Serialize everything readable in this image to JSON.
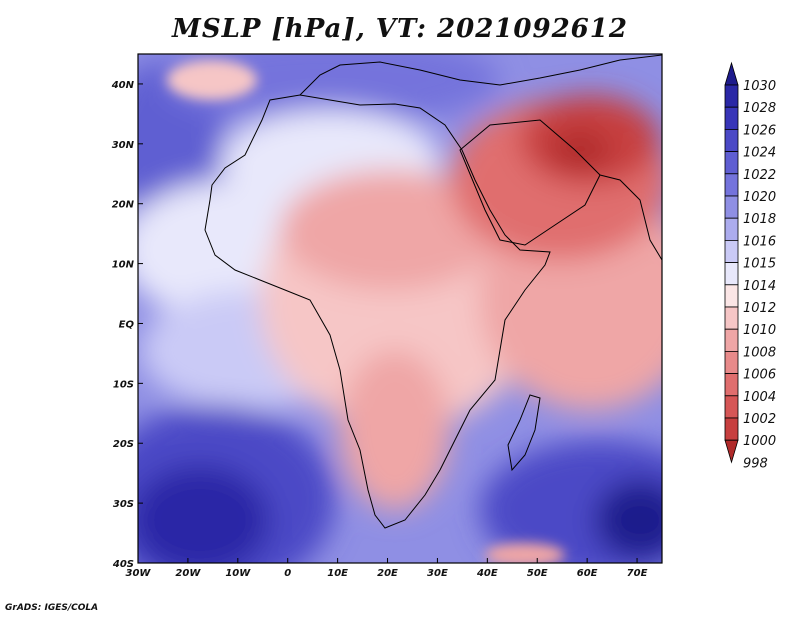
{
  "title": "MSLP [hPa], VT: 2021092612",
  "credit": "GrADS: IGES/COLA",
  "map": {
    "lon_range": [
      -30,
      75
    ],
    "lat_range": [
      -40,
      45
    ],
    "lon_ticks": [
      {
        "lon": -30,
        "label": "30W"
      },
      {
        "lon": -20,
        "label": "20W"
      },
      {
        "lon": -10,
        "label": "10W"
      },
      {
        "lon": 0,
        "label": "0"
      },
      {
        "lon": 10,
        "label": "10E"
      },
      {
        "lon": 20,
        "label": "20E"
      },
      {
        "lon": 30,
        "label": "30E"
      },
      {
        "lon": 40,
        "label": "40E"
      },
      {
        "lon": 50,
        "label": "50E"
      },
      {
        "lon": 60,
        "label": "60E"
      },
      {
        "lon": 70,
        "label": "70E"
      }
    ],
    "lat_ticks": [
      {
        "lat": 40,
        "label": "40N"
      },
      {
        "lat": 30,
        "label": "30N"
      },
      {
        "lat": 20,
        "label": "20N"
      },
      {
        "lat": 10,
        "label": "10N"
      },
      {
        "lat": 0,
        "label": "EQ"
      },
      {
        "lat": -10,
        "label": "10S"
      },
      {
        "lat": -20,
        "label": "20S"
      },
      {
        "lat": -30,
        "label": "30S"
      },
      {
        "lat": -40,
        "label": "40S"
      }
    ]
  },
  "colorbar": {
    "levels": [
      {
        "label": "1030",
        "color": "#1e1b8c"
      },
      {
        "label": "1028",
        "color": "#2a27a6"
      },
      {
        "label": "1026",
        "color": "#3835b8"
      },
      {
        "label": "1024",
        "color": "#4b49c6"
      },
      {
        "label": "1022",
        "color": "#5f5ed2"
      },
      {
        "label": "1020",
        "color": "#7473dc"
      },
      {
        "label": "1018",
        "color": "#8f8fe4"
      },
      {
        "label": "1016",
        "color": "#acacee"
      },
      {
        "label": "1015",
        "color": "#cacaf6"
      },
      {
        "label": "1014",
        "color": "#e8e8fb"
      },
      {
        "label": "1012",
        "color": "#fbe6e6"
      },
      {
        "label": "1010",
        "color": "#f6c6c6"
      },
      {
        "label": "1008",
        "color": "#efa6a6"
      },
      {
        "label": "1006",
        "color": "#e88a8a"
      },
      {
        "label": "1004",
        "color": "#e06e6e"
      },
      {
        "label": "1002",
        "color": "#d65656"
      },
      {
        "label": "1000",
        "color": "#c73f3f"
      },
      {
        "label": "998",
        "color": "#b02a2a"
      }
    ]
  }
}
